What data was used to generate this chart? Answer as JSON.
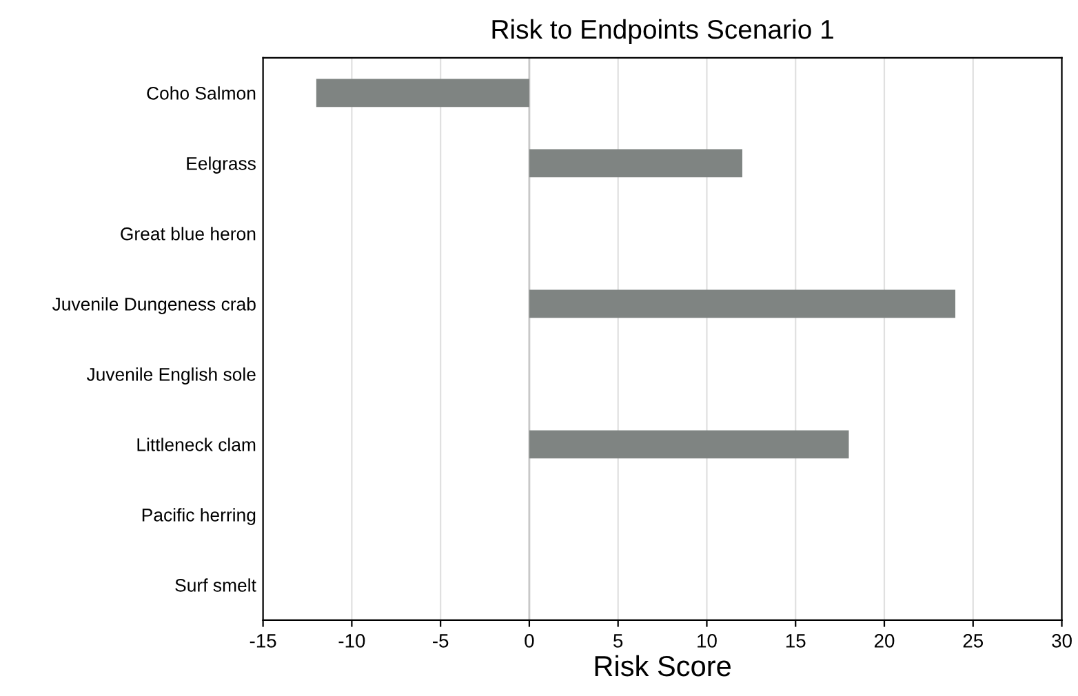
{
  "chart_data": {
    "type": "bar",
    "orientation": "horizontal",
    "title": "Risk to Endpoints Scenario 1",
    "xlabel": "Risk Score",
    "categories": [
      "Coho Salmon",
      "Eelgrass",
      "Great blue heron",
      "Juvenile Dungeness crab",
      "Juvenile English sole",
      "Littleneck clam",
      "Pacific herring",
      "Surf smelt"
    ],
    "values": [
      -12,
      12,
      0,
      24,
      0,
      18,
      0,
      0
    ],
    "color": "#7f8482",
    "xlim": [
      -15,
      30
    ],
    "xticks": [
      -15,
      -10,
      -5,
      0,
      5,
      10,
      15,
      20,
      25,
      30
    ],
    "grid": "x",
    "legend": false
  }
}
